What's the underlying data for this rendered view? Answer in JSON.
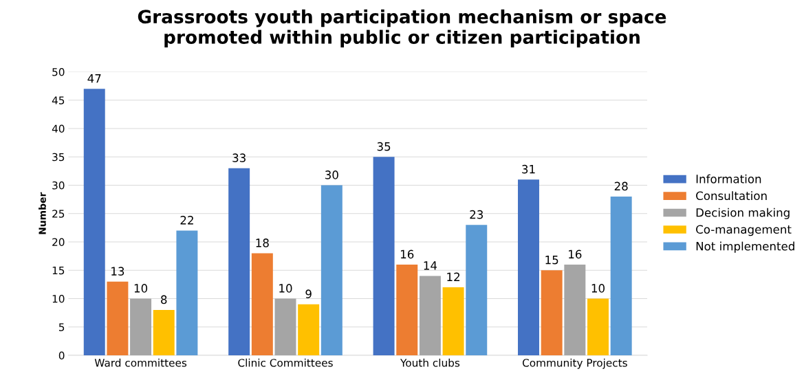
{
  "chart_data": {
    "type": "bar",
    "title": "Grassroots youth participation mechanism or space\npromoted within public or citizen participation",
    "ylabel": "Number",
    "categories": [
      "Ward committees",
      "Clinic Committees",
      "Youth clubs",
      "Community Projects"
    ],
    "series": [
      {
        "name": "Information",
        "color": "#4472c4",
        "values": [
          47,
          33,
          35,
          31
        ]
      },
      {
        "name": "Consultation",
        "color": "#ed7d31",
        "values": [
          13,
          18,
          16,
          15
        ]
      },
      {
        "name": "Decision making",
        "color": "#a5a5a5",
        "values": [
          10,
          10,
          14,
          16
        ]
      },
      {
        "name": "Co-management",
        "color": "#ffc000",
        "values": [
          8,
          9,
          12,
          10
        ]
      },
      {
        "name": "Not implemented",
        "color": "#5b9bd5",
        "values": [
          22,
          30,
          23,
          28
        ]
      }
    ],
    "ylim": [
      0,
      50
    ],
    "yticks": [
      0,
      5,
      10,
      15,
      20,
      25,
      30,
      35,
      40,
      45,
      50
    ],
    "grid": "y",
    "legend": "right",
    "data_labels": true
  }
}
